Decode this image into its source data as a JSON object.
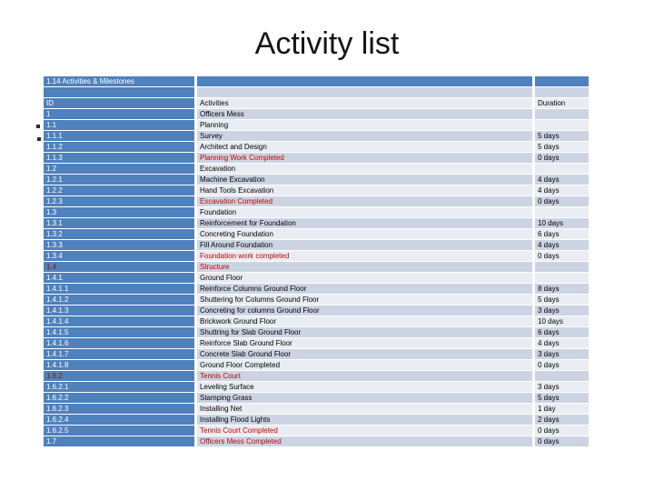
{
  "slide": {
    "title": "Activity list"
  },
  "colors": {
    "accent_blue": "#4f81bd",
    "band_dark": "#ccd4e3",
    "band_light": "#e9ecf2",
    "milestone_red": "#c00000",
    "background": "#ffffff"
  },
  "table": {
    "title_row": "1.14 Activities & Milestones",
    "columns": {
      "id": "ID",
      "activities": "Activities",
      "duration": "Duration"
    },
    "rows": [
      {
        "id": "1",
        "activity": "Officers Mess",
        "duration": ""
      },
      {
        "id": "1.1",
        "activity": "Planning",
        "duration": ""
      },
      {
        "id": "1.1.1",
        "activity": "Survey",
        "duration": "5 days"
      },
      {
        "id": "1.1.2",
        "activity": "Architect and Design",
        "duration": "5 days"
      },
      {
        "id": "1.1.3",
        "activity": "Planning Work Completed",
        "duration": "0 days",
        "red_activity": true
      },
      {
        "id": "1.2",
        "activity": "Excavation",
        "duration": ""
      },
      {
        "id": "1.2.1",
        "activity": "Machine Excavation",
        "duration": "4 days"
      },
      {
        "id": "1.2.2",
        "activity": "Hand Tools Excavation",
        "duration": "4 days"
      },
      {
        "id": "1.2.3",
        "activity": "Excavation Completed",
        "duration": "0 days",
        "red_activity": true
      },
      {
        "id": "1.3",
        "activity": "Foundation",
        "duration": ""
      },
      {
        "id": "1.3.1",
        "activity": "Reinforcement for Foundation",
        "duration": "10 days"
      },
      {
        "id": "1.3.2",
        "activity": "Concreting Foundation",
        "duration": "6 days"
      },
      {
        "id": "1.3.3",
        "activity": "Fill Around Foundation",
        "duration": "4 days"
      },
      {
        "id": "1.3.4",
        "activity": "Foundation work completed",
        "duration": "0 days",
        "red_activity": true
      },
      {
        "id": "1.4",
        "activity": "Structure",
        "duration": "",
        "red_activity": true,
        "red_id": true
      },
      {
        "id": "1.4.1",
        "activity": "Ground Floor",
        "duration": ""
      },
      {
        "id": "1.4.1.1",
        "activity": "Reinforce Columns Ground Floor",
        "duration": "8 days"
      },
      {
        "id": "1.4.1.2",
        "activity": "Shuttering for Columns Ground Floor",
        "duration": "5 days"
      },
      {
        "id": "1.4.1.3",
        "activity": "Concreting for columns Ground Floor",
        "duration": "3 days"
      },
      {
        "id": "1.4.1.4",
        "activity": "Brickwork Ground Floor",
        "duration": "10 days"
      },
      {
        "id": "1.4.1.5",
        "activity": "Shuttring for Slab Ground Floor",
        "duration": "6 days"
      },
      {
        "id": "1.4.1.6",
        "activity": "Reinforce Slab Ground Floor",
        "duration": "4 days"
      },
      {
        "id": "1.4.1.7",
        "activity": "Concrete Slab Ground Floor",
        "duration": "3 days"
      },
      {
        "id": "1.4.1.8",
        "activity": "Ground Floor Completed",
        "duration": "0 days"
      },
      {
        "id": "1.6.2",
        "activity": "Tennis Court",
        "duration": "",
        "red_activity": true,
        "red_id": true
      },
      {
        "id": "1.6.2.1",
        "activity": "Leveling Surface",
        "duration": "3 days"
      },
      {
        "id": "1.6.2.2",
        "activity": "Stamping Grass",
        "duration": "5 days"
      },
      {
        "id": "1.6.2.3",
        "activity": "Installing Net",
        "duration": "1 day"
      },
      {
        "id": "1.6.2.4",
        "activity": "Installing Flood Lights",
        "duration": "2 days"
      },
      {
        "id": "1.6.2.5",
        "activity": "Tennis Court Completed",
        "duration": "0 days",
        "red_activity": true
      },
      {
        "id": "1.7",
        "activity": "Officers Mess Completed",
        "duration": "0 days",
        "red_activity": true
      }
    ]
  }
}
